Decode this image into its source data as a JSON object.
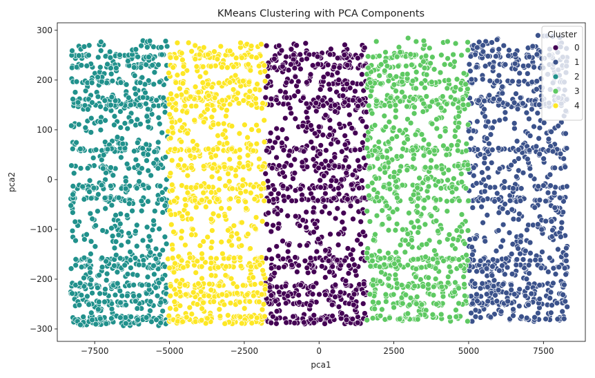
{
  "chart_data": {
    "type": "scatter",
    "title": "KMeans Clustering with PCA Components",
    "xlabel": "pca1",
    "ylabel": "pca2",
    "xlim": [
      -8750,
      8900
    ],
    "ylim": [
      -325,
      315
    ],
    "x_ticks": [
      -7500,
      -5000,
      -2500,
      0,
      2500,
      5000,
      7500
    ],
    "x_tick_labels": [
      "−7500",
      "−5000",
      "−2500",
      "0",
      "2500",
      "5000",
      "7500"
    ],
    "y_ticks": [
      -300,
      -200,
      -100,
      0,
      100,
      200,
      300
    ],
    "y_tick_labels": [
      "−300",
      "−200",
      "−100",
      "0",
      "100",
      "200",
      "300"
    ],
    "grid": false,
    "legend": {
      "title": "Cluster",
      "placement": "top-right",
      "entries": [
        {
          "label": "0",
          "color": "#440154"
        },
        {
          "label": "1",
          "color": "#3b528b"
        },
        {
          "label": "2",
          "color": "#21918c"
        },
        {
          "label": "3",
          "color": "#5ec962"
        },
        {
          "label": "4",
          "color": "#fde725"
        }
      ]
    },
    "series": [
      {
        "name": "0",
        "color": "#440154",
        "x_range": [
          -1800,
          1600
        ],
        "y_range": [
          -290,
          275
        ]
      },
      {
        "name": "1",
        "color": "#3b528b",
        "x_range": [
          5000,
          8300
        ],
        "y_range": [
          -285,
          290
        ]
      },
      {
        "name": "2",
        "color": "#21918c",
        "x_range": [
          -8300,
          -5050
        ],
        "y_range": [
          -295,
          280
        ]
      },
      {
        "name": "3",
        "color": "#5ec962",
        "x_range": [
          1600,
          5000
        ],
        "y_range": [
          -285,
          285
        ]
      },
      {
        "name": "4",
        "color": "#fde725",
        "x_range": [
          -5050,
          -1800
        ],
        "y_range": [
          -290,
          275
        ]
      }
    ],
    "dense_y_bands": [
      248,
      228,
      195,
      162,
      150,
      60,
      25,
      -15,
      -40,
      -160,
      -175,
      -212,
      -230,
      -248,
      -278,
      -288
    ],
    "point_edge_color": "#ffffff"
  }
}
